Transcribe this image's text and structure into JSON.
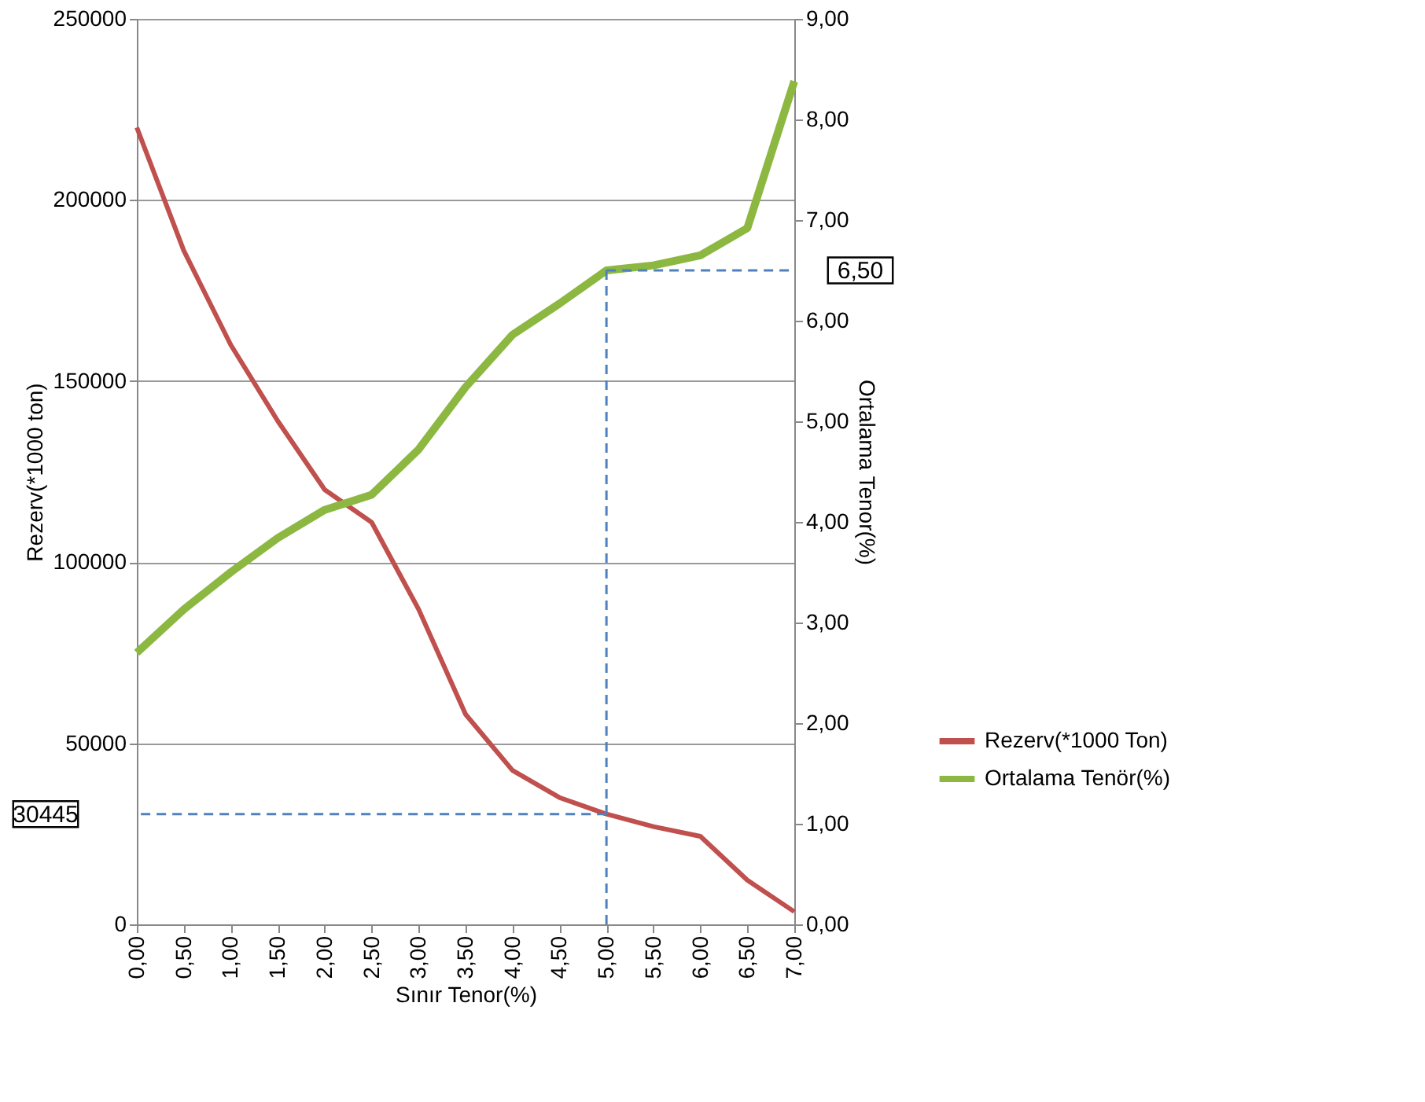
{
  "chart_data": {
    "type": "line",
    "xlabel": "Sınır Tenor(%)",
    "ylabel": "Rezerv(*1000 ton)",
    "y2label": "Ortalama Tenor(%)",
    "categories": [
      "0,00",
      "0,50",
      "1,00",
      "1,50",
      "2,00",
      "2,50",
      "3,00",
      "3,50",
      "4,00",
      "4,50",
      "5,00",
      "5,50",
      "6,00",
      "6,50",
      "7,00"
    ],
    "series": [
      {
        "name": "Rezerv(*1000 Ton)",
        "color": "#c0504d",
        "values": [
          220000,
          186000,
          160000,
          139000,
          120000,
          111000,
          87000,
          58000,
          42500,
          35000,
          30445,
          27000,
          24300,
          12200,
          3500
        ]
      },
      {
        "name": "Ortalama Tenör(%)",
        "color": "#8cb842",
        "axis": "y2",
        "values": [
          2.7,
          3.13,
          3.5,
          3.84,
          4.12,
          4.27,
          4.72,
          5.34,
          5.86,
          6.17,
          6.5,
          6.55,
          6.65,
          6.92,
          8.38
        ]
      }
    ],
    "ylim": [
      0,
      250000
    ],
    "yticks": [
      0,
      50000,
      100000,
      150000,
      200000,
      250000
    ],
    "y2lim": [
      0,
      9
    ],
    "y2ticks": [
      {
        "value": 0,
        "label": "0,00"
      },
      {
        "value": 1,
        "label": "1,00"
      },
      {
        "value": 2,
        "label": "2,00"
      },
      {
        "value": 3,
        "label": "3,00"
      },
      {
        "value": 4,
        "label": "4,00"
      },
      {
        "value": 5,
        "label": "5,00"
      },
      {
        "value": 6,
        "label": "6,00"
      },
      {
        "value": 7,
        "label": "7,00"
      },
      {
        "value": 8,
        "label": "8,00"
      },
      {
        "value": 9,
        "label": "9,00"
      }
    ],
    "ref_lines": [
      {
        "axis": "y",
        "value": 30445,
        "label": "30445",
        "color": "#4f81bd",
        "line_style": "dashed"
      },
      {
        "axis": "x",
        "value": "5,00",
        "color": "#4f81bd",
        "line_style": "dashed"
      },
      {
        "axis": "y2",
        "value": 6.5,
        "label": "6,50",
        "color": "#4f81bd",
        "line_style": "dashed"
      }
    ],
    "grid": "y",
    "legend": "right",
    "marker": "none",
    "line_style": "solid"
  }
}
